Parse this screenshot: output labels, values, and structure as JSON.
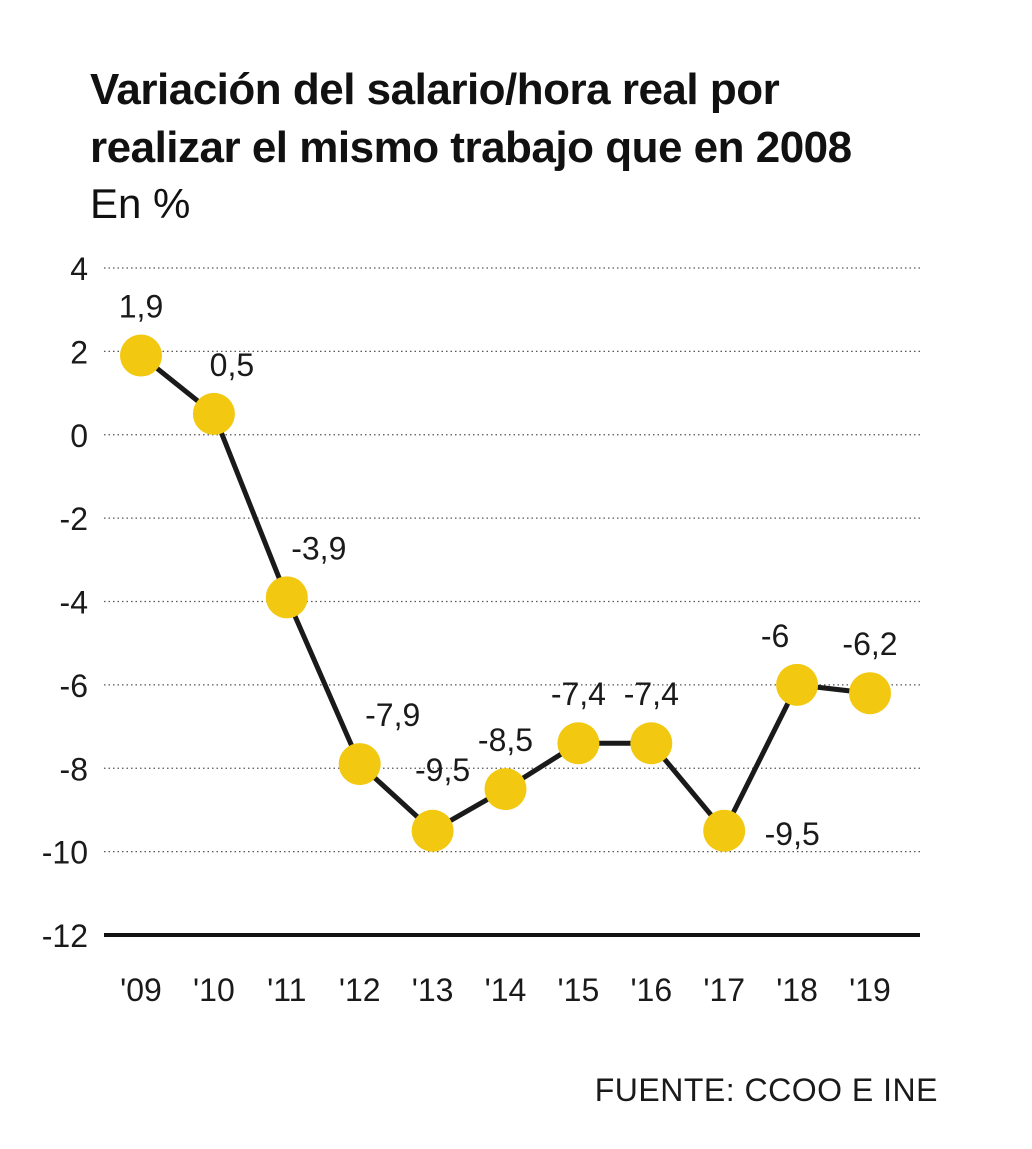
{
  "chart_data": {
    "type": "line",
    "title_lines": [
      "Variación del salario/hora real por",
      "realizar el mismo trabajo que en 2008"
    ],
    "subtitle": "En %",
    "categories": [
      "'09",
      "'10",
      "'11",
      "'12",
      "'13",
      "'14",
      "'15",
      "'16",
      "'17",
      "'18",
      "'19"
    ],
    "values": [
      1.9,
      0.5,
      -3.9,
      -7.9,
      -9.5,
      -8.5,
      -7.4,
      -7.4,
      -9.5,
      -6,
      -6.2
    ],
    "data_labels": [
      "1,9",
      "0,5",
      "-3,9",
      "-7,9",
      "-9,5",
      "-8,5",
      "-7,4",
      "-7,4",
      "-9,5",
      "-6",
      "-6,2"
    ],
    "y_ticks": [
      4,
      2,
      0,
      -2,
      -4,
      -6,
      -8,
      -10,
      -12
    ],
    "y_tick_labels": [
      "4",
      "2",
      "0",
      "-2",
      "-4",
      "-6",
      "-8",
      "-10",
      "-12"
    ],
    "ylim": [
      -12,
      4
    ],
    "grid": "dotted horizontal",
    "source": "FUENTE: CCOO E INE",
    "colors": {
      "marker": "#F2C811",
      "line": "#1a1a1a",
      "grid": "#555555",
      "text": "#1a1a1a"
    }
  }
}
